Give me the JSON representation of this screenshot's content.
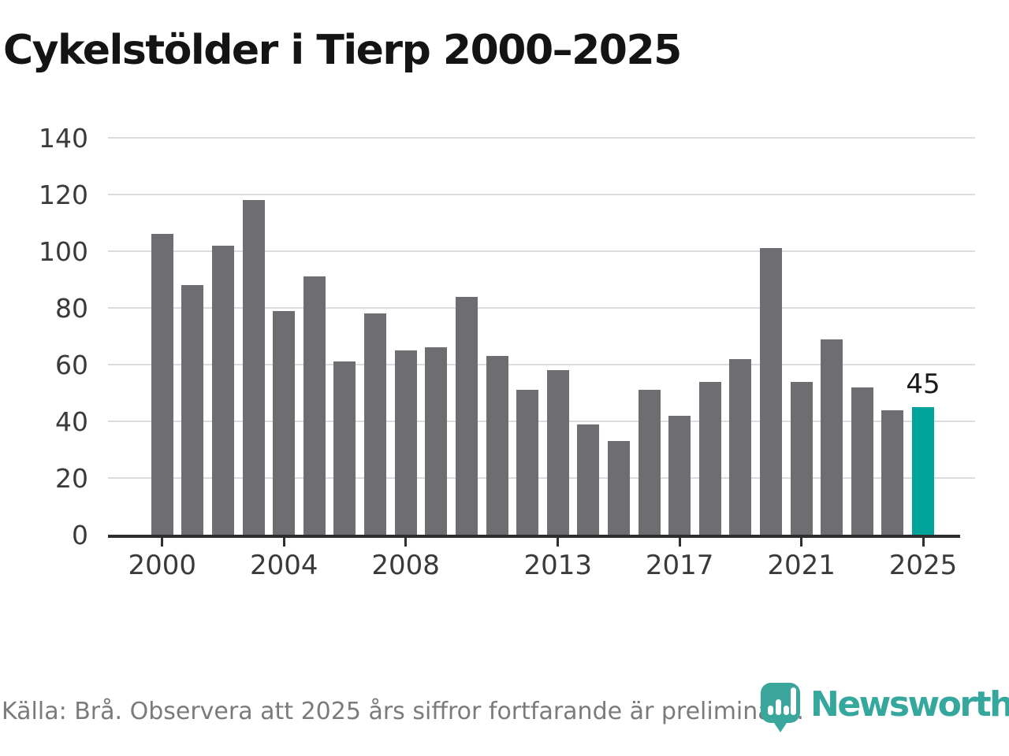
{
  "title": "Cykelstölder i Tierp 2000–2025",
  "footer": {
    "source_text": "Källa: Brå. Observera att 2025 års siffror fortfarande är preliminära."
  },
  "logo": {
    "brand_name": "Newsworthy"
  },
  "chart_data": {
    "type": "bar",
    "title": "Cykelstölder i Tierp 2000–2025",
    "categories": [
      2000,
      2001,
      2002,
      2003,
      2004,
      2005,
      2006,
      2007,
      2008,
      2009,
      2010,
      2011,
      2012,
      2013,
      2014,
      2015,
      2016,
      2017,
      2018,
      2019,
      2020,
      2021,
      2022,
      2023,
      2024,
      2025
    ],
    "values": [
      106,
      88,
      102,
      118,
      79,
      91,
      61,
      78,
      65,
      66,
      84,
      63,
      51,
      58,
      39,
      33,
      51,
      42,
      54,
      62,
      101,
      54,
      69,
      52,
      44,
      45
    ],
    "highlight_index": 25,
    "highlight_label": "45",
    "xlabel": "",
    "ylabel": "",
    "ylim": [
      0,
      140
    ],
    "y_ticks": [
      0,
      20,
      40,
      60,
      80,
      100,
      120,
      140
    ],
    "x_tick_labels": [
      "2000",
      "2004",
      "2008",
      "2013",
      "2017",
      "2021",
      "2025"
    ],
    "grid": "horizontal",
    "legend": "none",
    "colors": {
      "bar": "#6e6d72",
      "highlight": "#00a49b",
      "grid": "#dcdcdc",
      "axis": "#2e2e2e",
      "tick_text": "#3a3a3a",
      "title_text": "#141414",
      "footer_text": "#7b7b7b",
      "brand": "#35a79d"
    }
  }
}
